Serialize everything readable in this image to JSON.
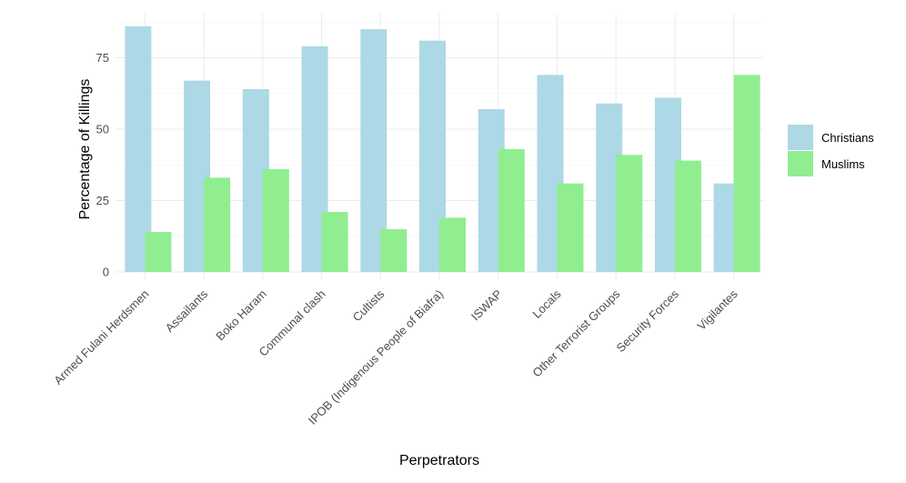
{
  "chart_data": {
    "type": "bar",
    "title": "",
    "xlabel": "Perpetrators",
    "ylabel": "Percentage of Killings",
    "categories": [
      "Armed Fulani Herdsmen",
      "Assailants",
      "Boko Haram",
      "Communal clash",
      "Cultists",
      "IPOB (Indigenous People of Biafra)",
      "ISWAP",
      "Locals",
      "Other Terrorist Groups",
      "Security Forces",
      "Vigilantes"
    ],
    "series": [
      {
        "name": "Christians",
        "color": "#add8e6",
        "values": [
          86,
          67,
          64,
          79,
          85,
          81,
          57,
          69,
          59,
          61,
          31
        ]
      },
      {
        "name": "Muslims",
        "color": "#90ee90",
        "values": [
          14,
          33,
          36,
          21,
          15,
          19,
          43,
          31,
          41,
          39,
          69
        ]
      }
    ],
    "ylim": [
      0,
      90
    ],
    "yticks": [
      0,
      25,
      50,
      75
    ],
    "grid": true,
    "legend_position": "right"
  }
}
